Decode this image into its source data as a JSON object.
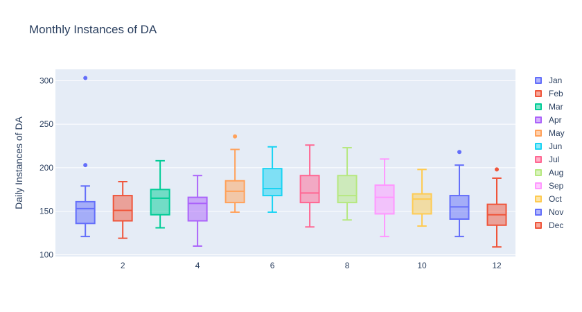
{
  "chart_data": {
    "type": "box",
    "title": "Monthly Instances of DA",
    "ylabel": "Daily Instances of DA",
    "xlabel": "",
    "x_ticks": [
      2,
      4,
      6,
      8,
      10,
      12
    ],
    "y_ticks": [
      100,
      150,
      200,
      250,
      300
    ],
    "xlim": [
      0.2,
      12.5
    ],
    "ylim": [
      98,
      313
    ],
    "grid": true,
    "legend_position": "right",
    "series": [
      {
        "name": "Jan",
        "x": 1,
        "min": 121,
        "q1": 136,
        "median": 153,
        "q3": 161,
        "max": 179,
        "outliers": [
          203,
          303
        ],
        "color": "#636efa"
      },
      {
        "name": "Feb",
        "x": 2,
        "min": 119,
        "q1": 139,
        "median": 151,
        "q3": 168,
        "max": 184,
        "outliers": [],
        "color": "#EF553B"
      },
      {
        "name": "Mar",
        "x": 3,
        "min": 131,
        "q1": 146,
        "median": 165,
        "q3": 175,
        "max": 208,
        "outliers": [],
        "color": "#00cc96"
      },
      {
        "name": "Apr",
        "x": 4,
        "min": 110,
        "q1": 139,
        "median": 159,
        "q3": 166,
        "max": 191,
        "outliers": [],
        "color": "#ab63fa"
      },
      {
        "name": "May",
        "x": 5,
        "min": 149,
        "q1": 160,
        "median": 173,
        "q3": 185,
        "max": 221,
        "outliers": [
          236
        ],
        "color": "#FFA15A"
      },
      {
        "name": "Jun",
        "x": 6,
        "min": 149,
        "q1": 168,
        "median": 176,
        "q3": 199,
        "max": 224,
        "outliers": [],
        "color": "#19d3f3"
      },
      {
        "name": "Jul",
        "x": 7,
        "min": 132,
        "q1": 160,
        "median": 171,
        "q3": 191,
        "max": 226,
        "outliers": [],
        "color": "#FF6692"
      },
      {
        "name": "Aug",
        "x": 8,
        "min": 140,
        "q1": 160,
        "median": 168,
        "q3": 191,
        "max": 223,
        "outliers": [],
        "color": "#B6E880"
      },
      {
        "name": "Sep",
        "x": 9,
        "min": 121,
        "q1": 147,
        "median": 166,
        "q3": 180,
        "max": 210,
        "outliers": [],
        "color": "#FF97FF"
      },
      {
        "name": "Oct",
        "x": 10,
        "min": 133,
        "q1": 147,
        "median": 164,
        "q3": 170,
        "max": 198,
        "outliers": [],
        "color": "#FECB52"
      },
      {
        "name": "Nov",
        "x": 11,
        "min": 121,
        "q1": 141,
        "median": 155,
        "q3": 168,
        "max": 203,
        "outliers": [
          218
        ],
        "color": "#636efa"
      },
      {
        "name": "Dec",
        "x": 12,
        "min": 109,
        "q1": 134,
        "median": 146,
        "q3": 158,
        "max": 188,
        "outliers": [
          198
        ],
        "color": "#EF553B"
      }
    ]
  }
}
